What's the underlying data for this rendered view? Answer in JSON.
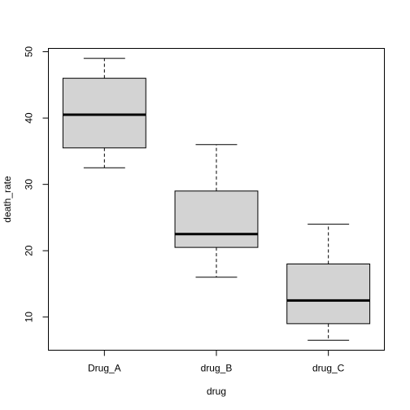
{
  "chart_data": {
    "type": "boxplot",
    "xlabel": "drug",
    "ylabel": "death_rate",
    "ylim": [
      5,
      50.5
    ],
    "yticks": [
      10,
      20,
      30,
      40,
      50
    ],
    "categories": [
      "Drug_A",
      "drug_B",
      "drug_C"
    ],
    "boxes": [
      {
        "min": 32.5,
        "q1": 35.5,
        "median": 40.5,
        "q3": 46,
        "max": 49
      },
      {
        "min": 16,
        "q1": 20.5,
        "median": 22.5,
        "q3": 29,
        "max": 36
      },
      {
        "min": 6.5,
        "q1": 9,
        "median": 12.5,
        "q3": 18,
        "max": 24
      }
    ],
    "box_fill": "#d3d3d3",
    "grid": false
  }
}
